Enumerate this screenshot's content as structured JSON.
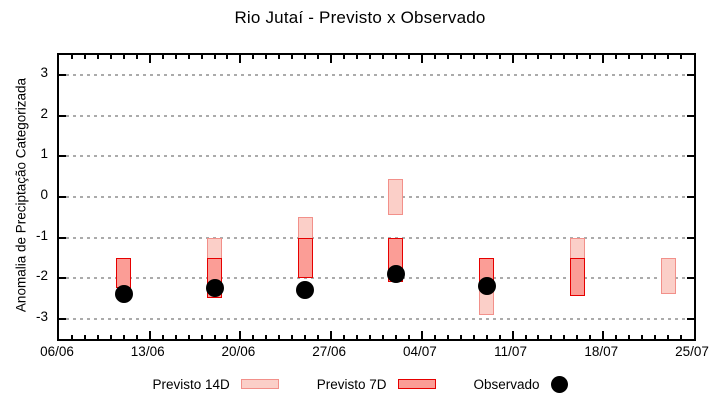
{
  "title": "Rio Jutaí - Previsto x Observado",
  "legend": {
    "items": [
      {
        "label": "Previsto 14D",
        "swatch": "light-pink-box"
      },
      {
        "label": "Previsto 7D",
        "swatch": "red-box"
      },
      {
        "label": "Observado",
        "swatch": "black-dot"
      }
    ]
  },
  "colors": {
    "previsto14_fill": "#fbcfc8",
    "previsto14_border": "#f2908a",
    "previsto7_fill": "#fb9d96",
    "previsto7_border": "#e60000",
    "observado": "#000000",
    "grid": "#ababab",
    "axis": "#000000"
  },
  "chart_data": {
    "type": "bar",
    "title": "Rio Jutaí - Previsto x Observado",
    "xlabel": "",
    "ylabel": "Anomalia de Preciptação Categorizada",
    "ylim": [
      -3.5,
      3.5
    ],
    "y_ticks": [
      -3,
      -2,
      -1,
      0,
      1,
      2,
      3
    ],
    "grid": "horizontal-dashed",
    "legend_position": "bottom",
    "x_axis": {
      "start_label": "06/06",
      "end_label": "25/07",
      "range_days": 49,
      "major_tick_every_days": 7,
      "minor_tick_every_days": 1,
      "tick_labels": [
        "06/06",
        "13/06",
        "20/06",
        "27/06",
        "04/07",
        "11/07",
        "18/07",
        "25/07"
      ],
      "tick_label_days": [
        0,
        7,
        14,
        21,
        28,
        35,
        42,
        49
      ]
    },
    "series": [
      {
        "name": "Previsto 14D",
        "type": "range-bar",
        "fill": "#fbcfc8",
        "border": "#f2908a",
        "points": [
          {
            "date": "18/06",
            "day": 12,
            "high": -1.0,
            "low": -2.5
          },
          {
            "date": "25/06",
            "day": 19,
            "high": -0.5,
            "low": -2.0
          },
          {
            "date": "02/07",
            "day": 26,
            "high": 0.45,
            "low": -0.45
          },
          {
            "date": "09/07",
            "day": 33,
            "high": -1.5,
            "low": -2.9
          },
          {
            "date": "16/07",
            "day": 40,
            "high": -1.0,
            "low": -2.45
          },
          {
            "date": "23/07",
            "day": 47,
            "high": -1.5,
            "low": -2.4
          }
        ]
      },
      {
        "name": "Previsto 7D",
        "type": "range-bar",
        "fill": "#fb9d96",
        "border": "#e60000",
        "points": [
          {
            "date": "11/06",
            "day": 5,
            "high": -1.5,
            "low": -2.25
          },
          {
            "date": "18/06",
            "day": 12,
            "high": -1.5,
            "low": -2.5
          },
          {
            "date": "25/06",
            "day": 19,
            "high": -1.0,
            "low": -2.0
          },
          {
            "date": "02/07",
            "day": 26,
            "high": -1.0,
            "low": -2.1
          },
          {
            "date": "09/07",
            "day": 33,
            "high": -1.5,
            "low": -2.3
          },
          {
            "date": "16/07",
            "day": 40,
            "high": -1.5,
            "low": -2.45
          }
        ]
      },
      {
        "name": "Observado",
        "type": "scatter",
        "color": "#000000",
        "points": [
          {
            "date": "11/06",
            "day": 5,
            "value": -2.4
          },
          {
            "date": "18/06",
            "day": 12,
            "value": -2.25
          },
          {
            "date": "25/06",
            "day": 19,
            "value": -2.3
          },
          {
            "date": "02/07",
            "day": 26,
            "value": -1.9
          },
          {
            "date": "09/07",
            "day": 33,
            "value": -2.2
          }
        ]
      }
    ]
  }
}
